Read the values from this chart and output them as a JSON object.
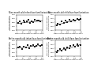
{
  "panels": [
    {
      "title": "Nine-month-old infant face familiarization",
      "xlabel": "Days of Exposure to Infant Faces",
      "ylabel": "Novel Category\nPreference Score",
      "xlim": [
        0,
        200
      ],
      "ylim": [
        0,
        1
      ],
      "yticks": [
        0.0,
        0.25,
        0.5,
        0.75,
        1.0
      ],
      "xticks": [
        0,
        50,
        100,
        150,
        200
      ],
      "points_x": [
        10,
        25,
        35,
        50,
        60,
        75,
        90,
        100,
        115,
        130,
        140,
        155,
        170,
        185
      ],
      "points_y": [
        0.45,
        0.55,
        0.4,
        0.6,
        0.5,
        0.55,
        0.65,
        0.48,
        0.58,
        0.52,
        0.7,
        0.6,
        0.62,
        0.55
      ],
      "trend_x": [
        0,
        200
      ],
      "trend_y": [
        0.44,
        0.62
      ]
    },
    {
      "title": "Nine-month-old child face familiarization",
      "xlabel": "Days of Exposure to Infant Faces",
      "ylabel": "Novel Category\nPreference Score",
      "xlim": [
        0,
        200
      ],
      "ylim": [
        0,
        1
      ],
      "yticks": [
        0.0,
        0.25,
        0.5,
        0.75,
        1.0
      ],
      "xticks": [
        0,
        50,
        100,
        150,
        200
      ],
      "points_x": [
        10,
        20,
        35,
        50,
        65,
        80,
        95,
        110,
        125,
        140,
        155,
        170,
        185,
        195
      ],
      "points_y": [
        0.3,
        0.42,
        0.38,
        0.55,
        0.48,
        0.6,
        0.52,
        0.65,
        0.58,
        0.7,
        0.62,
        0.75,
        0.68,
        0.72
      ],
      "trend_x": [
        0,
        200
      ],
      "trend_y": [
        0.32,
        0.74
      ]
    },
    {
      "title": "Twelve-month-old infant face familiarization",
      "xlabel": "Days of Exposure to Infant Faces",
      "ylabel": "Novel Category\nPreference Score",
      "xlim": [
        0,
        200
      ],
      "ylim": [
        0,
        1
      ],
      "yticks": [
        0.0,
        0.25,
        0.5,
        0.75,
        1.0
      ],
      "xticks": [
        0,
        50,
        100,
        150,
        200
      ],
      "points_x": [
        10,
        25,
        40,
        55,
        70,
        85,
        95,
        110,
        125,
        140,
        150,
        165,
        180,
        195
      ],
      "points_y": [
        0.55,
        0.6,
        0.48,
        0.62,
        0.58,
        0.7,
        0.52,
        0.65,
        0.72,
        0.6,
        0.68,
        0.75,
        0.65,
        0.7
      ],
      "trend_x": [
        0,
        200
      ],
      "trend_y": [
        0.52,
        0.7
      ]
    },
    {
      "title": "Twelve-month-old child face familiarization",
      "xlabel": "Days of Exposure to Infant Faces",
      "ylabel": "Novel Category\nPreference Score",
      "xlim": [
        0,
        200
      ],
      "ylim": [
        0,
        1
      ],
      "yticks": [
        0.0,
        0.25,
        0.5,
        0.75,
        1.0
      ],
      "xticks": [
        0,
        50,
        100,
        150,
        200
      ],
      "points_x": [
        10,
        20,
        35,
        50,
        65,
        80,
        95,
        110,
        120,
        140,
        155,
        170,
        180,
        195
      ],
      "points_y": [
        0.28,
        0.38,
        0.45,
        0.35,
        0.5,
        0.42,
        0.58,
        0.52,
        0.65,
        0.7,
        0.6,
        0.75,
        0.68,
        0.72
      ],
      "trend_x": [
        0,
        200
      ],
      "trend_y": [
        0.28,
        0.75
      ]
    }
  ],
  "point_color": "#222222",
  "line_color": "#222222",
  "background_color": "#ffffff",
  "title_fontsize": 1.8,
  "label_fontsize": 1.6,
  "tick_fontsize": 1.5,
  "point_size": 0.8,
  "line_width": 0.4
}
